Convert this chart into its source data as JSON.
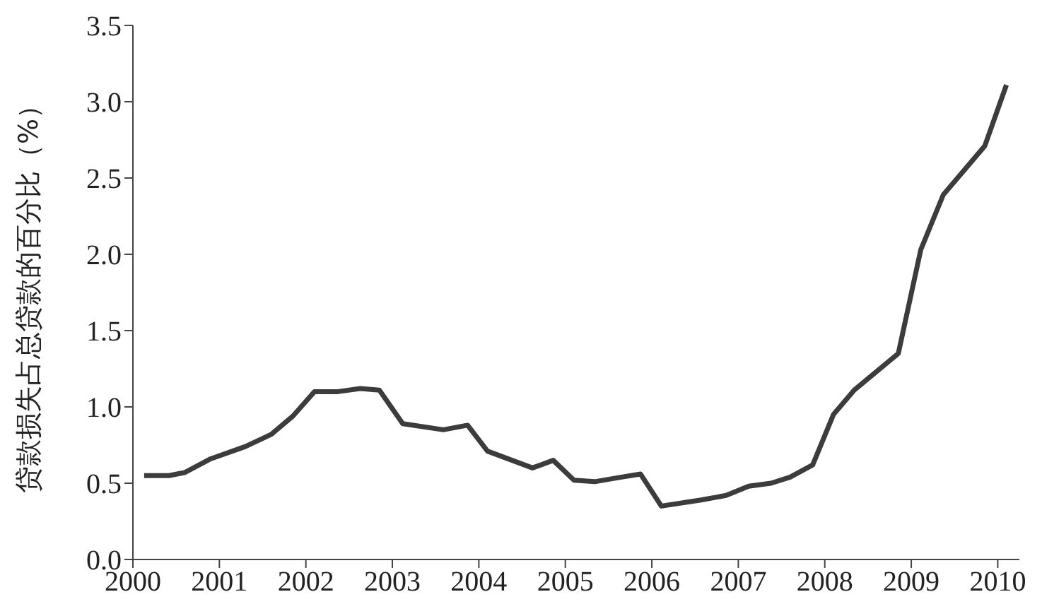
{
  "chart_data": {
    "type": "line",
    "ylabel": "贷款损失占总贷款的百分比（%）",
    "x": [
      2000.13,
      2000.42,
      2000.6,
      2000.9,
      2001.3,
      2001.6,
      2001.85,
      2002.1,
      2002.37,
      2002.63,
      2002.85,
      2003.12,
      2003.59,
      2003.87,
      2004.1,
      2004.62,
      2004.86,
      2005.1,
      2005.34,
      2005.65,
      2005.87,
      2006.11,
      2006.57,
      2006.86,
      2007.12,
      2007.38,
      2007.6,
      2007.86,
      2008.1,
      2008.34,
      2008.85,
      2009.11,
      2009.37,
      2009.85,
      2010.1
    ],
    "series": [
      {
        "color": "#3c3c3c",
        "values": [
          0.55,
          0.55,
          0.57,
          0.66,
          0.74,
          0.82,
          0.94,
          1.1,
          1.1,
          1.12,
          1.11,
          0.89,
          0.85,
          0.88,
          0.71,
          0.6,
          0.65,
          0.52,
          0.51,
          0.54,
          0.56,
          0.35,
          0.39,
          0.42,
          0.48,
          0.5,
          0.54,
          0.62,
          0.95,
          1.11,
          1.35,
          2.03,
          2.39,
          2.71,
          3.11
        ]
      }
    ],
    "xlim": [
      2000,
      2010.25
    ],
    "xticks": [
      2000,
      2001,
      2002,
      2003,
      2004,
      2005,
      2006,
      2007,
      2008,
      2009,
      2010
    ],
    "ylim": [
      0,
      3.5
    ],
    "yticks": [
      {
        "value": 0,
        "label": "0.0"
      },
      {
        "value": 0.5,
        "label": "0.5"
      },
      {
        "value": 1,
        "label": "1.0"
      },
      {
        "value": 1.5,
        "label": "1.5"
      },
      {
        "value": 2,
        "label": "2.0"
      },
      {
        "value": 2.5,
        "label": "2.5"
      },
      {
        "value": 3,
        "label": "3.0"
      },
      {
        "value": 3.5,
        "label": "3.5"
      }
    ],
    "grid": false,
    "legend": false,
    "marker": "none",
    "line_style": "solid"
  }
}
